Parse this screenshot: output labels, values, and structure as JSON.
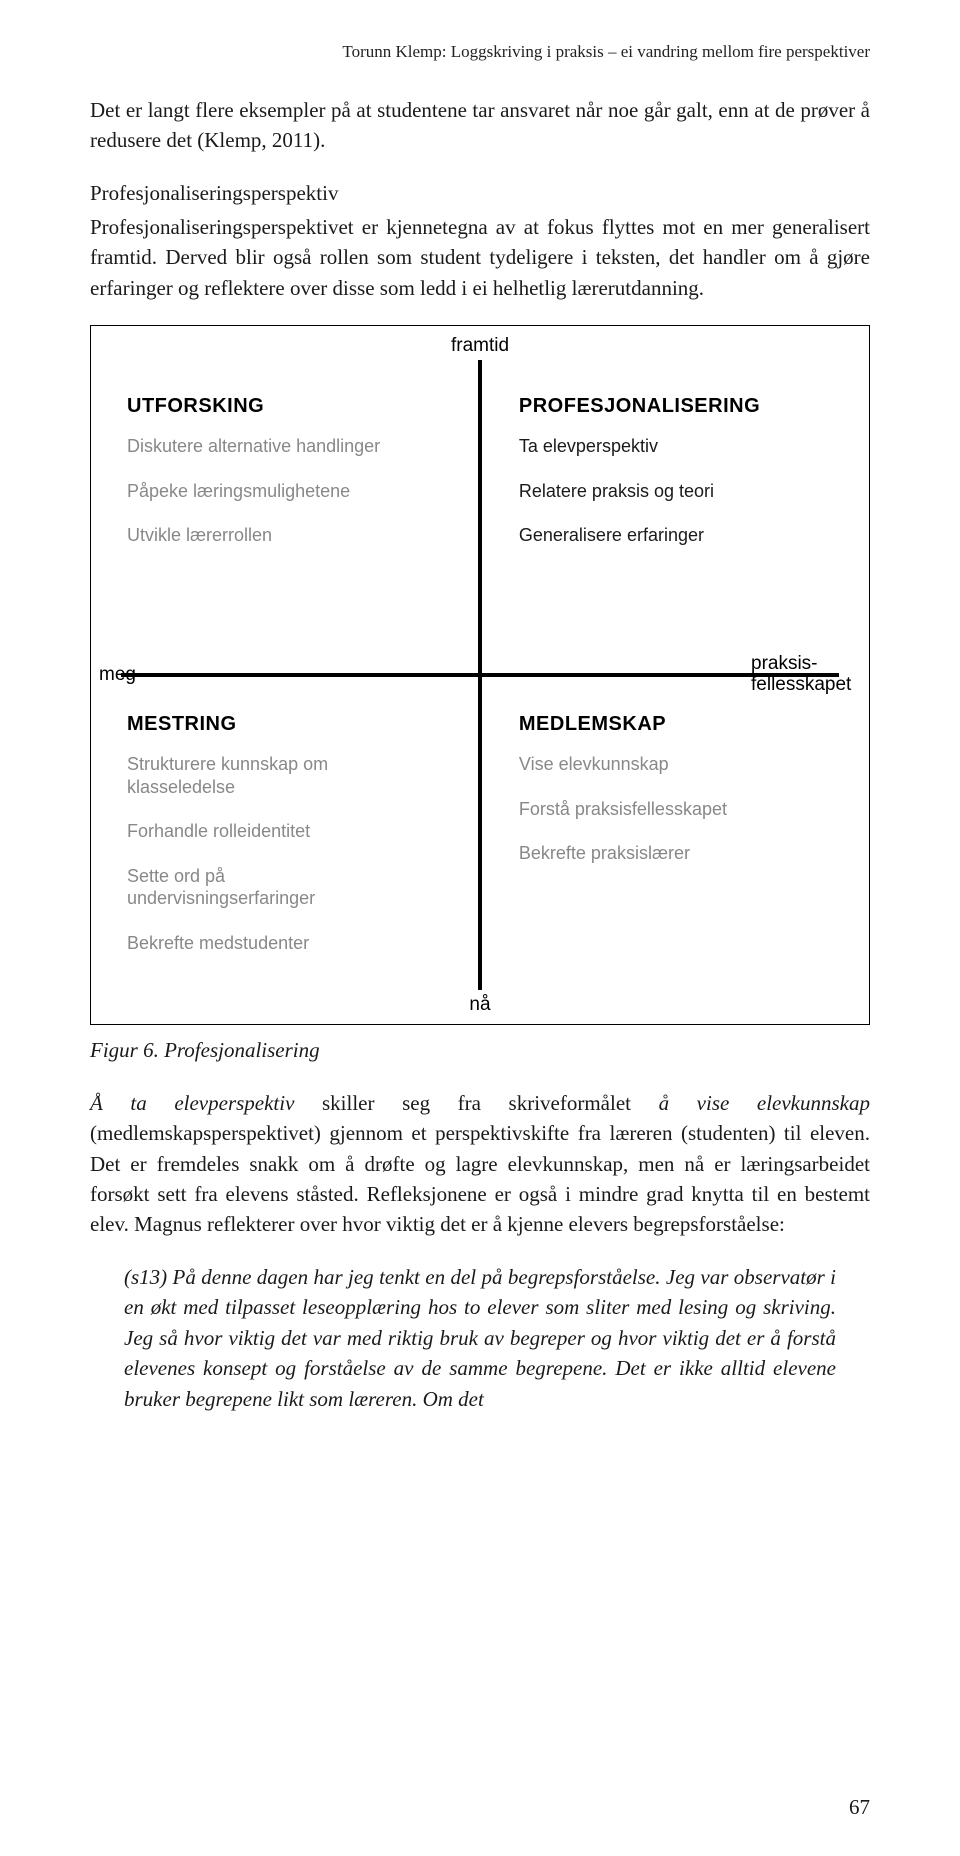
{
  "running_head": "Torunn Klemp: Loggskriving i praksis – ei vandring mellom fire perspektiver",
  "para1": "Det er langt flere eksempler på at studentene tar ansvaret når noe går galt, enn at de prøver å redusere det (Klemp, 2011).",
  "section_head": "Profesjonaliseringsperspektiv",
  "para2": "Profesjonaliseringsperspektivet er kjennetegna av at fokus flyttes mot en mer generalisert framtid. Derved blir også rollen som student tydeligere i teksten, det handler om å gjøre erfaringer og reflektere over disse som ledd i ei helhetlig lærerutdanning.",
  "figure": {
    "axis_top": "framtid",
    "axis_bottom": "nå",
    "axis_left": "meg",
    "axis_right": "praksis-\nfellesskapet",
    "q_tl": {
      "title": "UTFORSKING",
      "items": [
        "Diskutere alternative handlinger",
        "Påpeke læringsmulighetene",
        "Utvikle lærerrollen"
      ]
    },
    "q_tr": {
      "title": "PROFESJONALISERING",
      "items": [
        "Ta elevperspektiv",
        "Relatere praksis og teori",
        "Generalisere erfaringer"
      ]
    },
    "q_bl": {
      "title": "MESTRING",
      "items": [
        "Strukturere kunnskap om klasseledelse",
        "Forhandle rolleidentitet",
        "Sette ord på undervisningserfaringer",
        "Bekrefte medstudenter"
      ]
    },
    "q_br": {
      "title": "MEDLEMSKAP",
      "items": [
        "Vise elevkunnskap",
        "Forstå praksisfellesskapet",
        "Bekrefte praksislærer"
      ]
    }
  },
  "fig_caption": "Figur 6. Profesjonalisering",
  "para3_pre": "Å ta elevperspektiv",
  "para3_mid1": " skiller seg fra skriveformålet ",
  "para3_em2": "å vise elevkunnskap",
  "para3_rest": " (medlemskapsperspektivet) gjennom et perspektivskifte fra læreren (studenten) til eleven. Det er fremdeles snakk om å drøfte og lagre elevkunnskap, men nå er læringsarbeidet forsøkt sett fra elevens ståsted. Refleksjonene er også i mindre grad knytta til en bestemt elev. Magnus reflekterer over hvor viktig det er å kjenne elevers begrepsforståelse:",
  "quote": "(s13) På denne dagen har jeg tenkt en del på begrepsforståelse. Jeg var observatør i en økt med tilpasset leseopplæring hos to elever som sliter med lesing og skriving. Jeg så hvor viktig det var med riktig bruk av begreper og hvor viktig det er å forstå elevenes konsept og forståelse av de samme begrepene. Det er ikke alltid elevene bruker begrepene likt som læreren. Om det",
  "page_num": "67"
}
